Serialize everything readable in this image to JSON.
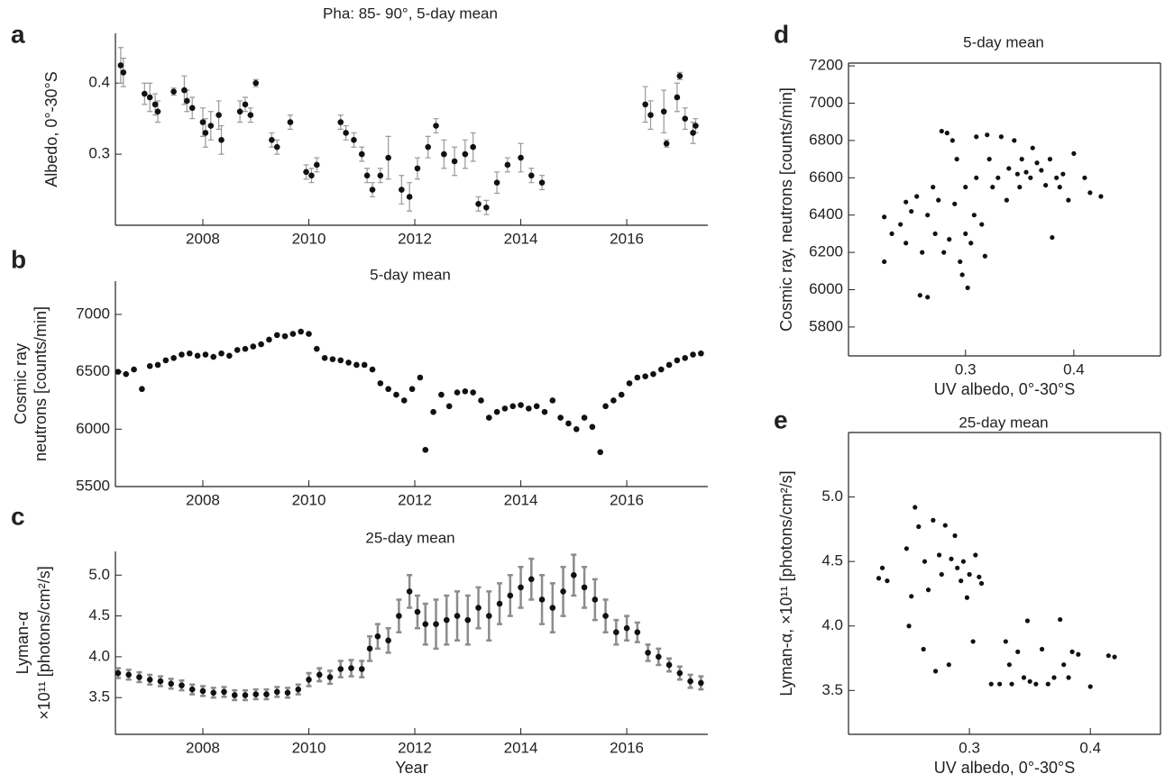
{
  "chart_data": [
    {
      "type": "scatter",
      "label": "a",
      "title": "Pha:  85- 90°, 5-day mean",
      "ylabel": "Albedo, 0°-30°S",
      "xlim": [
        2006.35,
        2017.53
      ],
      "xticks": [
        2008,
        2010,
        2012,
        2014,
        2016
      ],
      "ylim": [
        0.2,
        0.47
      ],
      "yticks": [
        0.3,
        0.4
      ],
      "color": "#111111",
      "error_color": "#999999",
      "x": [
        2006.45,
        2006.5,
        2006.9,
        2007.0,
        2007.1,
        2007.15,
        2007.45,
        2007.65,
        2007.7,
        2007.8,
        2008.0,
        2008.05,
        2008.15,
        2008.3,
        2008.35,
        2008.7,
        2008.8,
        2008.9,
        2009.0,
        2009.3,
        2009.4,
        2009.65,
        2009.95,
        2010.05,
        2010.15,
        2010.6,
        2010.7,
        2010.85,
        2011.0,
        2011.1,
        2011.2,
        2011.35,
        2011.5,
        2011.75,
        2011.9,
        2012.05,
        2012.25,
        2012.4,
        2012.55,
        2012.75,
        2012.95,
        2013.1,
        2013.2,
        2013.35,
        2013.55,
        2013.75,
        2014.0,
        2014.2,
        2014.4,
        2016.35,
        2016.45,
        2016.7,
        2016.75,
        2016.95,
        2017.0,
        2017.1,
        2017.25,
        2017.3
      ],
      "values": [
        0.425,
        0.415,
        0.385,
        0.38,
        0.37,
        0.36,
        0.388,
        0.39,
        0.375,
        0.365,
        0.345,
        0.33,
        0.34,
        0.355,
        0.32,
        0.36,
        0.37,
        0.355,
        0.4,
        0.32,
        0.31,
        0.345,
        0.275,
        0.27,
        0.285,
        0.345,
        0.33,
        0.32,
        0.3,
        0.27,
        0.25,
        0.27,
        0.295,
        0.25,
        0.24,
        0.28,
        0.31,
        0.34,
        0.3,
        0.29,
        0.3,
        0.31,
        0.23,
        0.225,
        0.26,
        0.285,
        0.295,
        0.27,
        0.26,
        0.37,
        0.355,
        0.36,
        0.315,
        0.38,
        0.41,
        0.35,
        0.33,
        0.34
      ],
      "errors": [
        0.025,
        0.02,
        0.015,
        0.02,
        0.015,
        0.015,
        0.005,
        0.02,
        0.015,
        0.015,
        0.02,
        0.02,
        0.02,
        0.02,
        0.02,
        0.015,
        0.01,
        0.01,
        0.005,
        0.01,
        0.01,
        0.01,
        0.01,
        0.01,
        0.01,
        0.01,
        0.01,
        0.01,
        0.01,
        0.01,
        0.01,
        0.01,
        0.03,
        0.02,
        0.02,
        0.015,
        0.015,
        0.01,
        0.02,
        0.02,
        0.02,
        0.02,
        0.01,
        0.01,
        0.015,
        0.01,
        0.02,
        0.01,
        0.01,
        0.025,
        0.02,
        0.03,
        0.005,
        0.02,
        0.005,
        0.015,
        0.015,
        0.01
      ]
    },
    {
      "type": "scatter",
      "label": "b",
      "title": "5-day mean",
      "ylabel": [
        "Cosmic ray",
        "neutrons [counts/min]"
      ],
      "xlim": [
        2006.35,
        2017.53
      ],
      "xticks": [
        2008,
        2010,
        2012,
        2014,
        2016
      ],
      "ylim": [
        5500,
        7290
      ],
      "yticks": [
        5500,
        6000,
        6500,
        7000
      ],
      "color": "#111111",
      "x": [
        2006.4,
        2006.55,
        2006.7,
        2006.85,
        2007.0,
        2007.15,
        2007.3,
        2007.45,
        2007.6,
        2007.75,
        2007.9,
        2008.05,
        2008.2,
        2008.35,
        2008.5,
        2008.65,
        2008.8,
        2008.95,
        2009.1,
        2009.25,
        2009.4,
        2009.55,
        2009.7,
        2009.85,
        2010.0,
        2010.15,
        2010.3,
        2010.45,
        2010.6,
        2010.75,
        2010.9,
        2011.05,
        2011.2,
        2011.35,
        2011.5,
        2011.65,
        2011.8,
        2011.95,
        2012.1,
        2012.2,
        2012.35,
        2012.5,
        2012.65,
        2012.8,
        2012.95,
        2013.1,
        2013.25,
        2013.4,
        2013.55,
        2013.7,
        2013.85,
        2014.0,
        2014.15,
        2014.3,
        2014.45,
        2014.6,
        2014.75,
        2014.9,
        2015.05,
        2015.2,
        2015.35,
        2015.5,
        2015.6,
        2015.75,
        2015.9,
        2016.05,
        2016.2,
        2016.35,
        2016.5,
        2016.65,
        2016.8,
        2016.95,
        2017.1,
        2017.25,
        2017.4
      ],
      "values": [
        6500,
        6480,
        6520,
        6350,
        6550,
        6560,
        6600,
        6620,
        6650,
        6660,
        6640,
        6650,
        6630,
        6660,
        6640,
        6690,
        6700,
        6720,
        6740,
        6780,
        6820,
        6810,
        6830,
        6850,
        6830,
        6700,
        6620,
        6610,
        6600,
        6580,
        6560,
        6560,
        6520,
        6400,
        6350,
        6300,
        6250,
        6350,
        6450,
        5820,
        6150,
        6300,
        6200,
        6320,
        6330,
        6320,
        6250,
        6100,
        6150,
        6180,
        6200,
        6210,
        6180,
        6200,
        6150,
        6250,
        6100,
        6050,
        6000,
        6100,
        6020,
        5800,
        6200,
        6250,
        6300,
        6400,
        6450,
        6460,
        6480,
        6520,
        6560,
        6600,
        6620,
        6650,
        6660
      ]
    },
    {
      "type": "scatter",
      "label": "c",
      "title": "25-day mean",
      "ylabel": [
        "Lyman-α",
        "×10¹¹ [photons/cm²/s]"
      ],
      "xlabel": "Year",
      "xlim": [
        2006.35,
        2017.53
      ],
      "xticks": [
        2008,
        2010,
        2012,
        2014,
        2016
      ],
      "ylim": [
        3.05,
        5.29
      ],
      "yticks": [
        3.5,
        {
          "value": 4,
          "label": "4.0"
        },
        4.5,
        {
          "value": 5,
          "label": "5.0"
        }
      ],
      "color": "#111111",
      "error_color": "#8c8c8c",
      "x": [
        2006.4,
        2006.6,
        2006.8,
        2007.0,
        2007.2,
        2007.4,
        2007.6,
        2007.8,
        2008.0,
        2008.2,
        2008.4,
        2008.6,
        2008.8,
        2009.0,
        2009.2,
        2009.4,
        2009.6,
        2009.8,
        2010.0,
        2010.2,
        2010.4,
        2010.6,
        2010.8,
        2011.0,
        2011.15,
        2011.3,
        2011.5,
        2011.7,
        2011.9,
        2012.05,
        2012.2,
        2012.4,
        2012.6,
        2012.8,
        2013.0,
        2013.2,
        2013.4,
        2013.6,
        2013.8,
        2014.0,
        2014.2,
        2014.4,
        2014.6,
        2014.8,
        2015.0,
        2015.2,
        2015.4,
        2015.6,
        2015.8,
        2016.0,
        2016.2,
        2016.4,
        2016.6,
        2016.8,
        2017.0,
        2017.2,
        2017.4
      ],
      "values": [
        3.8,
        3.78,
        3.75,
        3.72,
        3.7,
        3.67,
        3.65,
        3.6,
        3.58,
        3.56,
        3.57,
        3.53,
        3.53,
        3.54,
        3.54,
        3.57,
        3.56,
        3.6,
        3.72,
        3.78,
        3.75,
        3.85,
        3.86,
        3.85,
        4.1,
        4.25,
        4.2,
        4.5,
        4.8,
        4.55,
        4.4,
        4.4,
        4.45,
        4.5,
        4.45,
        4.6,
        4.5,
        4.65,
        4.75,
        4.85,
        4.95,
        4.7,
        4.6,
        4.8,
        5.0,
        4.85,
        4.7,
        4.5,
        4.3,
        4.35,
        4.3,
        4.05,
        4.0,
        3.9,
        3.8,
        3.7,
        3.68
      ],
      "errors": [
        0.06,
        0.06,
        0.06,
        0.06,
        0.06,
        0.06,
        0.06,
        0.06,
        0.06,
        0.06,
        0.06,
        0.06,
        0.06,
        0.06,
        0.06,
        0.06,
        0.06,
        0.06,
        0.08,
        0.08,
        0.08,
        0.1,
        0.1,
        0.1,
        0.15,
        0.15,
        0.15,
        0.2,
        0.2,
        0.2,
        0.25,
        0.3,
        0.3,
        0.3,
        0.3,
        0.25,
        0.3,
        0.25,
        0.25,
        0.25,
        0.25,
        0.3,
        0.3,
        0.3,
        0.25,
        0.25,
        0.25,
        0.2,
        0.15,
        0.15,
        0.12,
        0.1,
        0.1,
        0.08,
        0.08,
        0.08,
        0.08
      ]
    },
    {
      "type": "scatter",
      "label": "d",
      "title": "5-day mean",
      "ylabel": "Cosmic ray, neutrons [counts/min]",
      "xlabel": "UV albedo, 0°-30°S",
      "xlim": [
        0.192,
        0.48
      ],
      "xticks": [
        0.3,
        0.4
      ],
      "ylim": [
        5645,
        7215
      ],
      "yticks": [
        5800,
        6000,
        6200,
        6400,
        6600,
        6800,
        7000,
        7200
      ],
      "color": "#111111",
      "x": [
        0.225,
        0.225,
        0.232,
        0.24,
        0.245,
        0.25,
        0.255,
        0.258,
        0.265,
        0.26,
        0.265,
        0.27,
        0.272,
        0.275,
        0.278,
        0.28,
        0.283,
        0.285,
        0.288,
        0.29,
        0.292,
        0.295,
        0.297,
        0.3,
        0.3,
        0.302,
        0.305,
        0.308,
        0.31,
        0.31,
        0.315,
        0.318,
        0.32,
        0.322,
        0.325,
        0.33,
        0.333,
        0.338,
        0.34,
        0.345,
        0.348,
        0.35,
        0.352,
        0.356,
        0.36,
        0.362,
        0.366,
        0.37,
        0.374,
        0.378,
        0.38,
        0.384,
        0.387,
        0.39,
        0.395,
        0.4,
        0.41,
        0.415,
        0.425,
        0.245
      ],
      "values": [
        6390,
        6150,
        6300,
        6350,
        6250,
        6420,
        6500,
        5970,
        5960,
        6200,
        6400,
        6550,
        6300,
        6480,
        6850,
        6200,
        6840,
        6270,
        6800,
        6460,
        6700,
        6150,
        6080,
        6300,
        6550,
        6010,
        6250,
        6400,
        6820,
        6600,
        6350,
        6180,
        6830,
        6700,
        6550,
        6600,
        6820,
        6480,
        6650,
        6800,
        6620,
        6550,
        6700,
        6630,
        6600,
        6760,
        6680,
        6640,
        6560,
        6700,
        6280,
        6600,
        6550,
        6620,
        6480,
        6730,
        6600,
        6520,
        6500,
        6470
      ]
    },
    {
      "type": "scatter",
      "label": "e",
      "title": "25-day mean",
      "ylabel": "Lyman-α, ×10¹¹ [photons/cm²/s]",
      "xlabel": "UV albedo, 0°-30°S",
      "xlim": [
        0.2,
        0.458
      ],
      "xticks": [
        0.3,
        0.4
      ],
      "ylim": [
        3.16,
        5.5
      ],
      "yticks": [
        3.5,
        {
          "value": 4,
          "label": "4.0"
        },
        4.5,
        {
          "value": 5,
          "label": "5.0"
        }
      ],
      "color": "#111111",
      "x": [
        0.225,
        0.228,
        0.232,
        0.248,
        0.25,
        0.252,
        0.255,
        0.258,
        0.262,
        0.263,
        0.266,
        0.27,
        0.272,
        0.275,
        0.277,
        0.28,
        0.283,
        0.285,
        0.288,
        0.29,
        0.293,
        0.295,
        0.298,
        0.3,
        0.303,
        0.305,
        0.308,
        0.31,
        0.318,
        0.325,
        0.33,
        0.333,
        0.335,
        0.34,
        0.345,
        0.348,
        0.35,
        0.355,
        0.36,
        0.365,
        0.37,
        0.375,
        0.378,
        0.382,
        0.385,
        0.39,
        0.4,
        0.415,
        0.42
      ],
      "values": [
        4.37,
        4.45,
        4.35,
        4.6,
        4.0,
        4.23,
        4.92,
        4.77,
        3.82,
        4.5,
        4.28,
        4.82,
        3.65,
        4.55,
        4.4,
        4.78,
        3.7,
        4.52,
        4.7,
        4.45,
        4.35,
        4.5,
        4.22,
        4.4,
        3.88,
        4.55,
        4.38,
        4.33,
        3.55,
        3.55,
        3.88,
        3.7,
        3.55,
        3.8,
        3.6,
        4.04,
        3.57,
        3.55,
        3.82,
        3.55,
        3.6,
        4.05,
        3.7,
        3.6,
        3.8,
        3.78,
        3.53,
        3.77,
        3.76
      ]
    }
  ]
}
